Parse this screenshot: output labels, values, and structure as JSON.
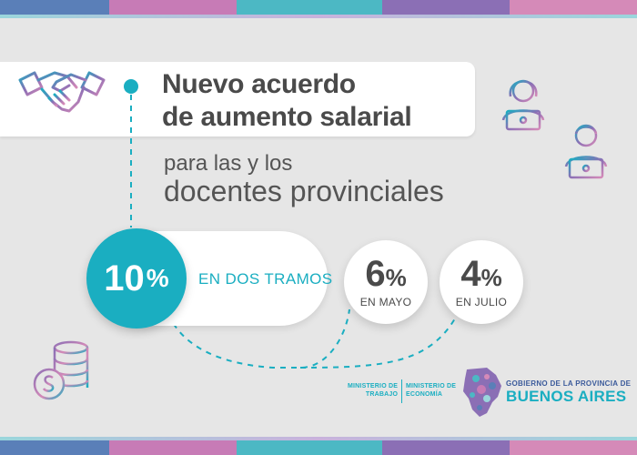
{
  "header": {
    "title_line1": "Nuevo acuerdo",
    "title_line2": "de aumento salarial"
  },
  "subtitle": {
    "line1": "para las y los",
    "line2": "docentes provinciales"
  },
  "total": {
    "number": "10",
    "unit": "%"
  },
  "tramos_label": "EN DOS TRAMOS",
  "tramos": [
    {
      "number": "6",
      "unit": "%",
      "label": "EN MAYO"
    },
    {
      "number": "4",
      "unit": "%",
      "label": "EN JULIO"
    }
  ],
  "footer": {
    "ministerio_trabajo": [
      "MINISTERIO DE",
      "TRABAJO"
    ],
    "ministerio_economia": [
      "MINISTERIO DE",
      "ECONOMÍA"
    ],
    "gobierno": "GOBIERNO DE LA PROVINCIA DE",
    "provincia": "BUENOS AIRES"
  },
  "icons": [
    "handshake-icon",
    "teacher-laptop-icon",
    "coins-icon",
    "province-map-logo-icon"
  ],
  "colors": {
    "accent": "#1aaec1",
    "text": "#4a4a4a",
    "brand_blue": "#3b5a9b",
    "pink": "#d58ab8",
    "purple": "#8b6fb5"
  }
}
